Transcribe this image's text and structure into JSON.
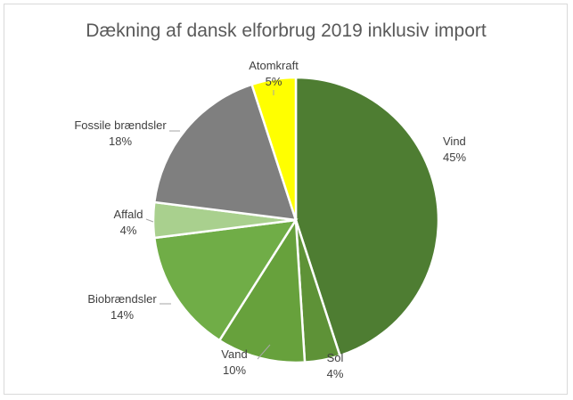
{
  "chart_data": {
    "type": "pie",
    "title": "Dækning af dansk elforbrug 2019 inklusiv import",
    "slices": [
      {
        "name": "Vind",
        "value": 45,
        "label": "45%",
        "color": "#4e7d32"
      },
      {
        "name": "Sol",
        "value": 4,
        "label": "4%",
        "color": "#5e9237"
      },
      {
        "name": "Vand",
        "value": 10,
        "label": "10%",
        "color": "#67a13c"
      },
      {
        "name": "Biobrændsler",
        "value": 14,
        "label": "14%",
        "color": "#70ad47"
      },
      {
        "name": "Affald",
        "value": 4,
        "label": "4%",
        "color": "#a9d08e"
      },
      {
        "name": "Fossile brændsler",
        "value": 18,
        "label": "18%",
        "color": "#7f7f7f"
      },
      {
        "name": "Atomkraft",
        "value": 5,
        "label": "5%",
        "color": "#ffff00"
      }
    ]
  }
}
